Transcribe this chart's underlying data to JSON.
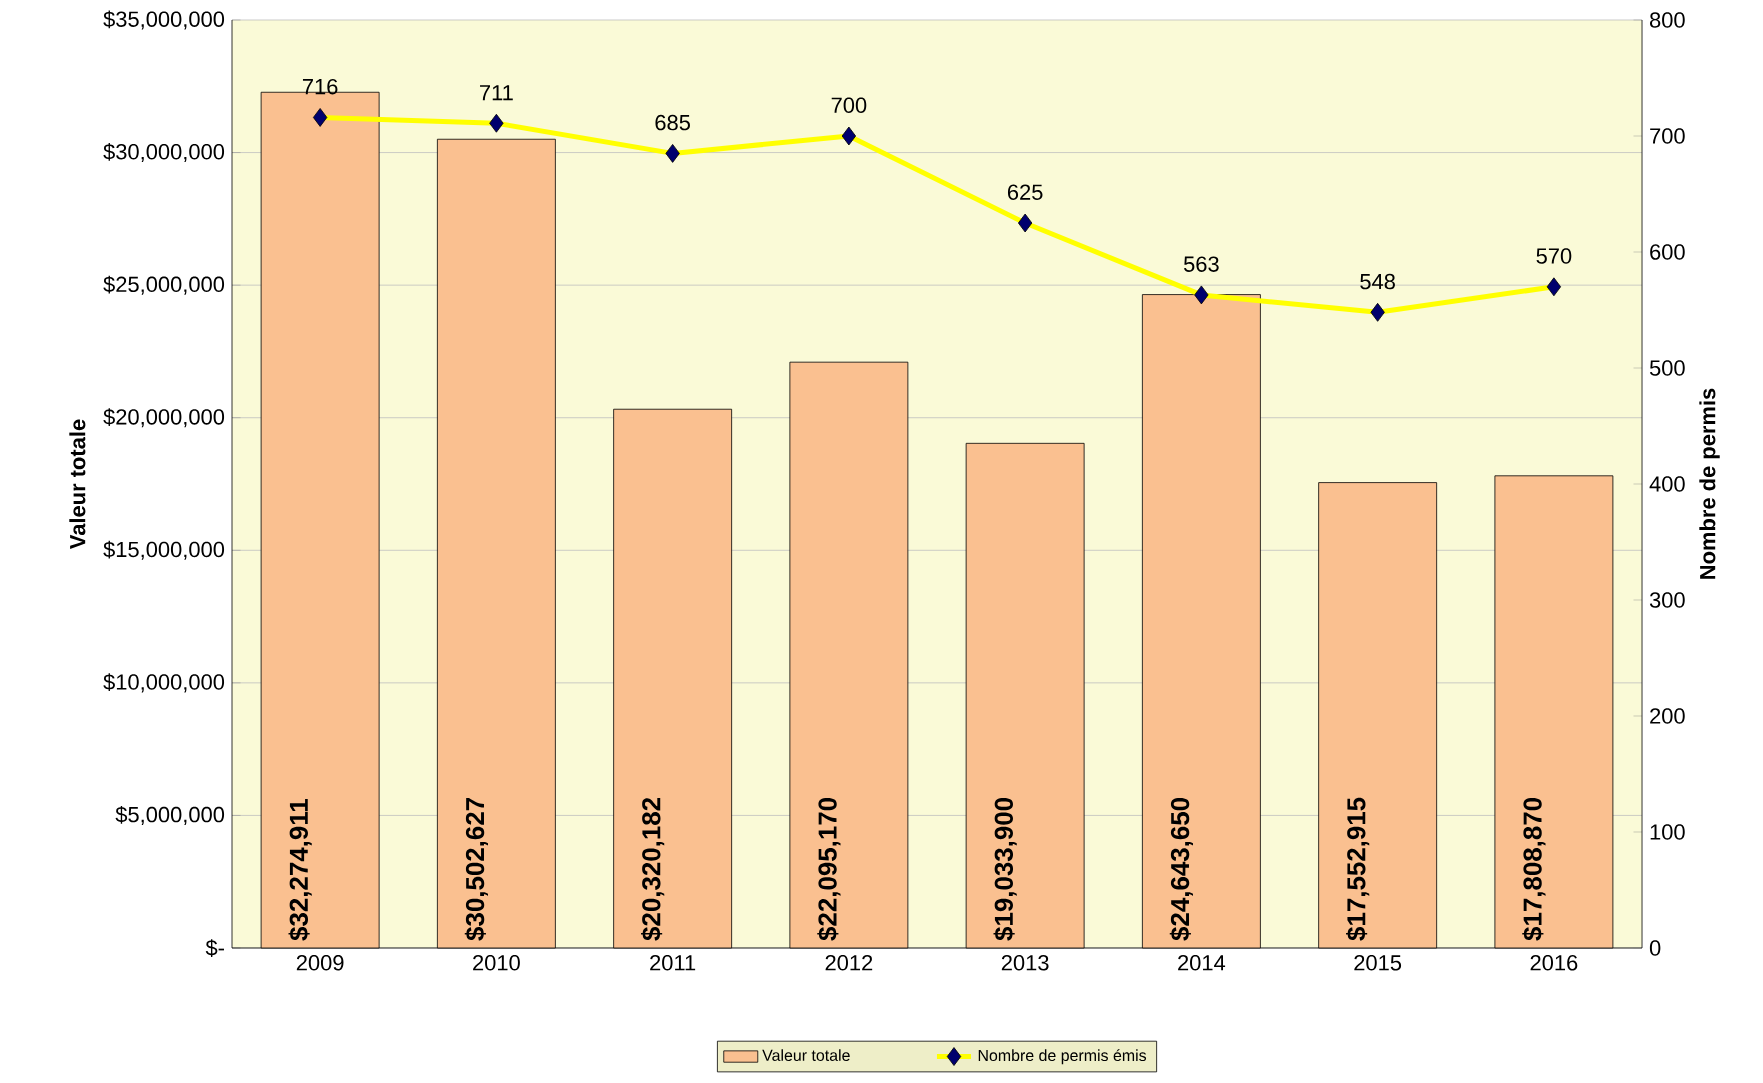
{
  "chart_data": {
    "type": "bar",
    "ylabel": "Valeur totale",
    "y2label": "Nombre de permis",
    "categories": [
      "2009",
      "2010",
      "2011",
      "2012",
      "2013",
      "2014",
      "2015",
      "2016"
    ],
    "series": [
      {
        "name": "Valeur totale",
        "color": "#fac090",
        "values": [
          32274911,
          30502627,
          20320182,
          22095170,
          19033900,
          24643650,
          17552915,
          17808870
        ],
        "value_labels": [
          "$32,274,911",
          "$30,502,627",
          "$20,320,182",
          "$22,095,170",
          "$19,033,900",
          "$24,643,650",
          "$17,552,915",
          "$17,808,870"
        ]
      },
      {
        "name": "Nombre de permis émis",
        "type": "line",
        "axis": "y2",
        "color": "#ffff00",
        "marker": "diamond",
        "values": [
          716,
          711,
          685,
          700,
          625,
          563,
          548,
          570
        ],
        "value_labels": [
          "716",
          "711",
          "685",
          "700",
          "625",
          "563",
          "548",
          "570"
        ]
      }
    ],
    "ylim": [
      0,
      35000000
    ],
    "yticks": [
      {
        "value": 0,
        "label": "$-"
      },
      {
        "value": 5000000,
        "label": "$5,000,000"
      },
      {
        "value": 10000000,
        "label": "$10,000,000"
      },
      {
        "value": 15000000,
        "label": "$15,000,000"
      },
      {
        "value": 20000000,
        "label": "$20,000,000"
      },
      {
        "value": 25000000,
        "label": "$25,000,000"
      },
      {
        "value": 30000000,
        "label": "$30,000,000"
      },
      {
        "value": 35000000,
        "label": "$35,000,000"
      }
    ],
    "y2lim": [
      0,
      800
    ],
    "y2ticks": [
      0,
      100,
      200,
      300,
      400,
      500,
      600,
      700,
      800
    ],
    "grid": "y",
    "legend": "bottom"
  }
}
